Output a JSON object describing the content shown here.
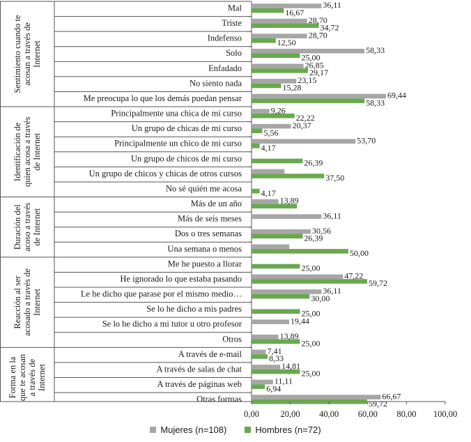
{
  "colors": {
    "women": "#a6a6a6",
    "men": "#6aa84f"
  },
  "legend": {
    "women": "Mujeres (n=108)",
    "men": "Hombres (n=72)"
  },
  "chart_data": {
    "type": "bar",
    "orientation": "horizontal",
    "xlim": [
      0,
      100
    ],
    "xticks": [
      "0,00",
      "20,00",
      "40,00",
      "60,00",
      "80,00",
      "100,00"
    ],
    "grid": false,
    "legend_position": "bottom",
    "series": [
      {
        "name": "Mujeres (n=108)"
      },
      {
        "name": "Hombres (n=72)"
      }
    ],
    "groups": [
      {
        "label_lines": [
          "Sentimiento cuando te",
          "acosan a través de",
          "Internet"
        ],
        "categories": [
          {
            "label": "Mal",
            "women": 36.11,
            "men": 16.67,
            "women_label": "36,11",
            "men_label": "16,67"
          },
          {
            "label": "Triste",
            "women": 28.7,
            "men": 34.72,
            "women_label": "28,70",
            "men_label": "34,72"
          },
          {
            "label": "Indefenso",
            "women": 28.7,
            "men": 12.5,
            "women_label": "28,70",
            "men_label": "12,50"
          },
          {
            "label": "Solo",
            "women": 58.33,
            "men": 25.0,
            "women_label": "58,33",
            "men_label": "25,00"
          },
          {
            "label": "Enfadado",
            "women": 26.85,
            "men": 29.17,
            "women_label": "26,85",
            "men_label": "29,17"
          },
          {
            "label": "No siento nada",
            "women": 23.15,
            "men": 15.28,
            "women_label": "23,15",
            "men_label": "15,28"
          },
          {
            "label": "Me preocupa lo que los demás puedan pensar",
            "women": 69.44,
            "men": 58.33,
            "women_label": "69,44",
            "men_label": "58,33"
          }
        ]
      },
      {
        "label_lines": [
          "Identificación de",
          "quien acosa a través",
          "de Internet"
        ],
        "categories": [
          {
            "label": "Principalmente una chica de mi curso",
            "women": 9.26,
            "men": 22.22,
            "women_label": "9,26",
            "men_label": "22,22"
          },
          {
            "label": "Un grupo de chicas de mi curso",
            "women": 20.37,
            "men": 5.56,
            "women_label": "20,37",
            "men_label": "5,56"
          },
          {
            "label": "Principalmente un chico de mi curso",
            "women": 53.7,
            "men": 4.17,
            "women_label": "53,70",
            "men_label": "4,17"
          },
          {
            "label": "Un grupo de chicos de mi curso",
            "women": 0,
            "men": 26.39,
            "women_label": "",
            "men_label": "26,39"
          },
          {
            "label": "Un grupo de chicos y chicas de otros cursos",
            "women": 17.0,
            "men": 37.5,
            "women_label": "",
            "men_label": "37,50"
          },
          {
            "label": "No sé quién me acosa",
            "women": 0,
            "men": 4.17,
            "women_label": "",
            "men_label": "4,17"
          }
        ]
      },
      {
        "label_lines": [
          "Duración del",
          "acoso a través",
          "de Internet"
        ],
        "categories": [
          {
            "label": "Más de un año",
            "women": 13.89,
            "men": 23.5,
            "women_label": "13,89",
            "men_label": ""
          },
          {
            "label": "Más de seis meses",
            "women": 36.11,
            "men": 0,
            "women_label": "36,11",
            "men_label": ""
          },
          {
            "label": "Dos o tres semanas",
            "women": 30.56,
            "men": 26.39,
            "women_label": "30,56",
            "men_label": "26,39"
          },
          {
            "label": "Una semana o menos",
            "women": 19.5,
            "men": 50.0,
            "women_label": "",
            "men_label": "50,00"
          }
        ]
      },
      {
        "label_lines": [
          "Reacción al ser",
          "acosado a través de",
          "Internet"
        ],
        "categories": [
          {
            "label": "Me he puesto a llorar",
            "women": 0,
            "men": 25.0,
            "women_label": "",
            "men_label": "25,00"
          },
          {
            "label": "He ignorado lo que estaba pasando",
            "women": 47.22,
            "men": 59.72,
            "women_label": "47,22",
            "men_label": "59,72"
          },
          {
            "label": "Le he dicho que parase por el mismo medio…",
            "women": 36.11,
            "men": 30.0,
            "women_label": "36,11",
            "men_label": "30,00"
          },
          {
            "label": "Se lo he dicho a mis padres",
            "women": 0,
            "men": 25.0,
            "women_label": "",
            "men_label": "25,00"
          },
          {
            "label": "Se lo he dicho a mi tutor u otro profesor",
            "women": 19.44,
            "men": 0,
            "women_label": "19,44",
            "men_label": ""
          },
          {
            "label": "Otros",
            "women": 13.89,
            "men": 25.0,
            "women_label": "13,89",
            "men_label": "25,00"
          }
        ]
      },
      {
        "label_lines": [
          "Forma en la",
          "que te acosan",
          "a través de",
          "Internet"
        ],
        "categories": [
          {
            "label": "A través de e-mail",
            "women": 7.41,
            "men": 8.33,
            "women_label": "7,41",
            "men_label": "8,33"
          },
          {
            "label": "A través de salas de chat",
            "women": 14.81,
            "men": 25.0,
            "women_label": "14,81",
            "men_label": "25,00"
          },
          {
            "label": "A través de páginas web",
            "women": 11.11,
            "men": 6.94,
            "women_label": "11,11",
            "men_label": "6,94"
          },
          {
            "label": "Otras formas",
            "women": 66.67,
            "men": 59.72,
            "women_label": "66,67",
            "men_label": "59,72"
          }
        ]
      }
    ]
  }
}
